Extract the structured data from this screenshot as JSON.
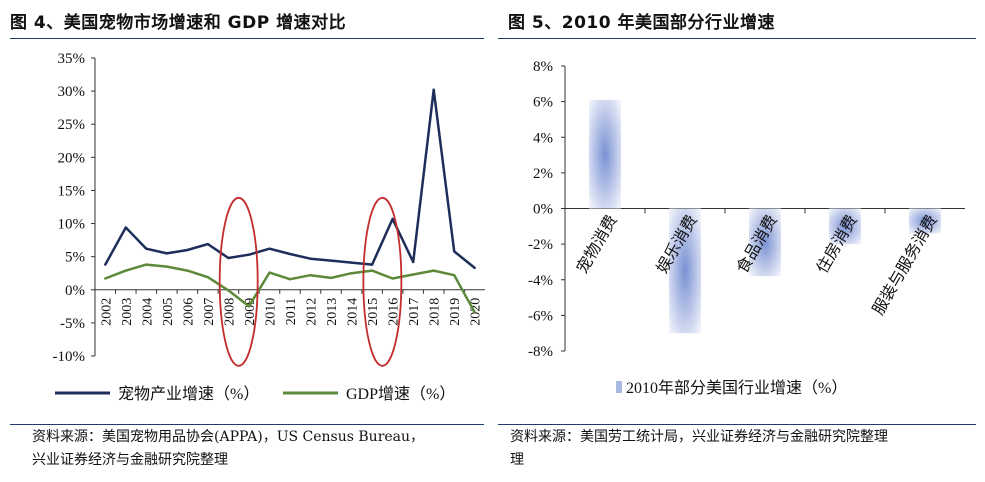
{
  "left": {
    "title": "图 4、美国宠物市场增速和 GDP 增速对比",
    "source_line1": "资料来源：美国宠物用品协会(APPA)，US Census Bureau，",
    "source_line2": "兴业证券经济与金融研究院整理"
  },
  "right": {
    "title": "图 5、2010 年美国部分行业增速",
    "source_line1": "资料来源：美国劳工统计局，兴业证券经济与金融研究院整理",
    "source_line2": "理"
  },
  "chart_data": [
    {
      "type": "line",
      "title": "美国宠物市场增速和 GDP 增速对比",
      "x": [
        "2002",
        "2003",
        "2004",
        "2005",
        "2006",
        "2007",
        "2008",
        "2009",
        "2010",
        "2011",
        "2012",
        "2013",
        "2014",
        "2015",
        "2016",
        "2017",
        "2018",
        "2019",
        "2020"
      ],
      "series": [
        {
          "name": "宠物产业增速（%）",
          "color": "#1f2d5a",
          "values": [
            3.8,
            9.4,
            6.2,
            5.5,
            6.0,
            6.9,
            4.8,
            5.3,
            6.2,
            5.4,
            4.7,
            4.4,
            4.1,
            3.8,
            10.7,
            4.2,
            30.2,
            5.8,
            3.3
          ]
        },
        {
          "name": "GDP增速（%）",
          "color": "#5c8a3a",
          "values": [
            1.7,
            2.9,
            3.8,
            3.5,
            2.9,
            1.9,
            -0.1,
            -2.5,
            2.6,
            1.6,
            2.2,
            1.8,
            2.5,
            2.9,
            1.7,
            2.3,
            2.9,
            2.2,
            -3.4
          ]
        }
      ],
      "yticks": [
        "35%",
        "30%",
        "25%",
        "20%",
        "15%",
        "10%",
        "5%",
        "0%",
        "-5%",
        "-10%"
      ],
      "ylim": [
        -10,
        35
      ],
      "highlights": [
        "2009",
        "2016"
      ],
      "legend": "bottom"
    },
    {
      "type": "bar",
      "title": "2010年部分美国行业增速（%）",
      "categories": [
        "宠物消费",
        "娱乐消费",
        "食品消费",
        "住房消费",
        "服装与服务消费"
      ],
      "values": [
        6.1,
        -7.0,
        -3.8,
        -2.0,
        -1.4
      ],
      "yticks": [
        "8%",
        "6%",
        "4%",
        "2%",
        "0%",
        "-2%",
        "-4%",
        "-6%",
        "-8%"
      ],
      "ylim": [
        -8,
        8
      ],
      "legend": "2010年部分美国行业增速（%）",
      "bar_color": "#a9b9e4"
    }
  ]
}
